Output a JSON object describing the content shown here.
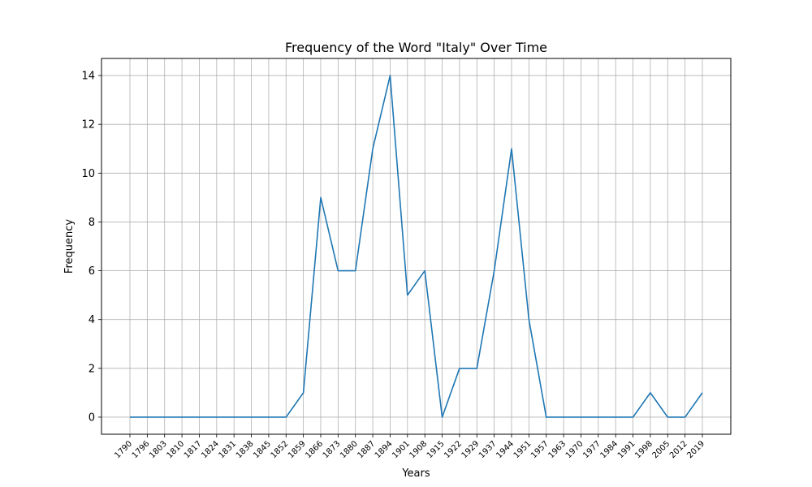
{
  "chart_data": {
    "type": "line",
    "title": "Frequency of the Word \"Italy\" Over Time",
    "xlabel": "Years",
    "ylabel": "Frequency",
    "categories": [
      "1790",
      "1796",
      "1803",
      "1810",
      "1817",
      "1824",
      "1831",
      "1838",
      "1845",
      "1852",
      "1859",
      "1866",
      "1873",
      "1880",
      "1887",
      "1894",
      "1901",
      "1908",
      "1915",
      "1922",
      "1929",
      "1937",
      "1944",
      "1951",
      "1957",
      "1963",
      "1970",
      "1977",
      "1984",
      "1991",
      "1998",
      "2005",
      "2012",
      "2019"
    ],
    "series": [
      {
        "values": [
          0,
          0,
          0,
          0,
          0,
          0,
          0,
          0,
          0,
          0,
          1,
          9,
          6,
          6,
          11,
          14,
          5,
          6,
          0,
          2,
          2,
          6,
          11,
          4,
          0,
          0,
          0,
          0,
          0,
          0,
          1,
          0,
          0,
          1
        ],
        "color": "#1f77b4"
      }
    ],
    "yticks": [
      0,
      2,
      4,
      6,
      8,
      10,
      12,
      14
    ],
    "ylim": [
      -0.7,
      14.7
    ],
    "grid": true
  }
}
